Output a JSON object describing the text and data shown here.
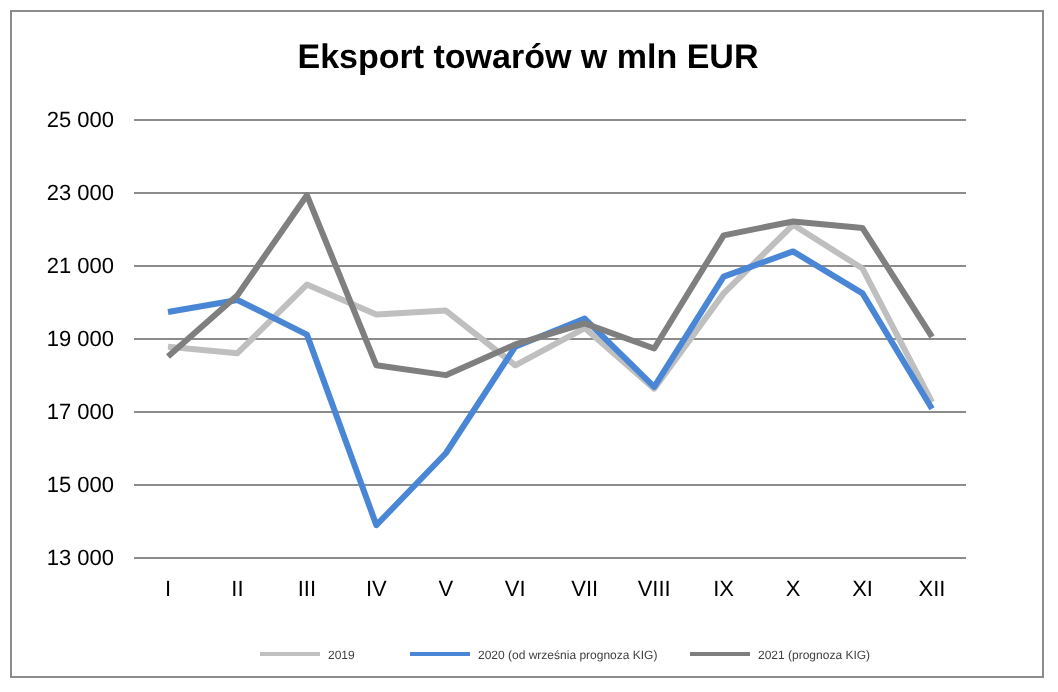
{
  "chart_data": {
    "type": "line",
    "title": "Eksport towarów w mln EUR",
    "categories": [
      "I",
      "II",
      "III",
      "IV",
      "V",
      "VI",
      "VII",
      "VIII",
      "IX",
      "X",
      "XI",
      "XII"
    ],
    "series": [
      {
        "name": "2019",
        "color": "#bfbfbf",
        "values": [
          18790,
          18610,
          20490,
          19670,
          19780,
          18280,
          19300,
          17640,
          20250,
          22130,
          20930,
          17270
        ]
      },
      {
        "name": "2020 (od września prognoza KIG)",
        "color": "#4a86d6",
        "values": [
          19740,
          20070,
          19120,
          13900,
          15870,
          18790,
          19560,
          17690,
          20710,
          21400,
          20250,
          17090
        ]
      },
      {
        "name": "2021 (prognoza KIG)",
        "color": "#7f7f7f",
        "values": [
          18520,
          20200,
          22940,
          18280,
          18010,
          18850,
          19430,
          18740,
          21840,
          22220,
          22040,
          19060
        ]
      }
    ],
    "ylim": [
      13000,
      25000
    ],
    "yticks": [
      {
        "value": 13000,
        "label": "13 000"
      },
      {
        "value": 15000,
        "label": "15 000"
      },
      {
        "value": 17000,
        "label": "17 000"
      },
      {
        "value": 19000,
        "label": "19 000"
      },
      {
        "value": 21000,
        "label": "21 000"
      },
      {
        "value": 23000,
        "label": "23 000"
      },
      {
        "value": 25000,
        "label": "25 000"
      }
    ],
    "grid": "y",
    "legend": "bottom",
    "marker": "none",
    "line_style": "solid"
  }
}
